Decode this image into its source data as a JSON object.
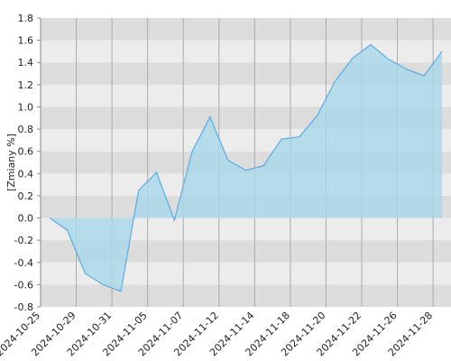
{
  "chart_data": {
    "type": "area",
    "y_label": "[Zmiany %]",
    "categories": [
      "2024-10-25",
      null,
      "2024-10-29",
      null,
      "2024-10-31",
      null,
      "2024-11-05",
      null,
      "2024-11-07",
      null,
      "2024-11-12",
      null,
      "2024-11-14",
      null,
      "2024-11-18",
      null,
      "2024-11-20",
      null,
      "2024-11-22",
      null,
      "2024-11-26",
      null,
      "2024-11-28"
    ],
    "values": [
      0,
      -0.11,
      -0.5,
      -0.6,
      -0.66,
      0.25,
      0.41,
      -0.02,
      0.6,
      0.91,
      0.52,
      0.43,
      0.47,
      0.71,
      0.73,
      0.92,
      1.23,
      1.44,
      1.56,
      1.43,
      1.34,
      1.28,
      1.5
    ],
    "color": "#5aabe0",
    "fill": "#a9d8ec",
    "ylim": [
      -0.8,
      1.8
    ],
    "yticks": [
      -0.8,
      -0.6,
      -0.4,
      -0.2,
      {
        "value": 0,
        "label": "0.0"
      },
      0.2,
      0.4,
      0.6,
      0.8,
      {
        "value": 1,
        "label": "1.0"
      },
      1.2,
      1.4,
      1.6,
      1.8
    ],
    "grid": true
  }
}
